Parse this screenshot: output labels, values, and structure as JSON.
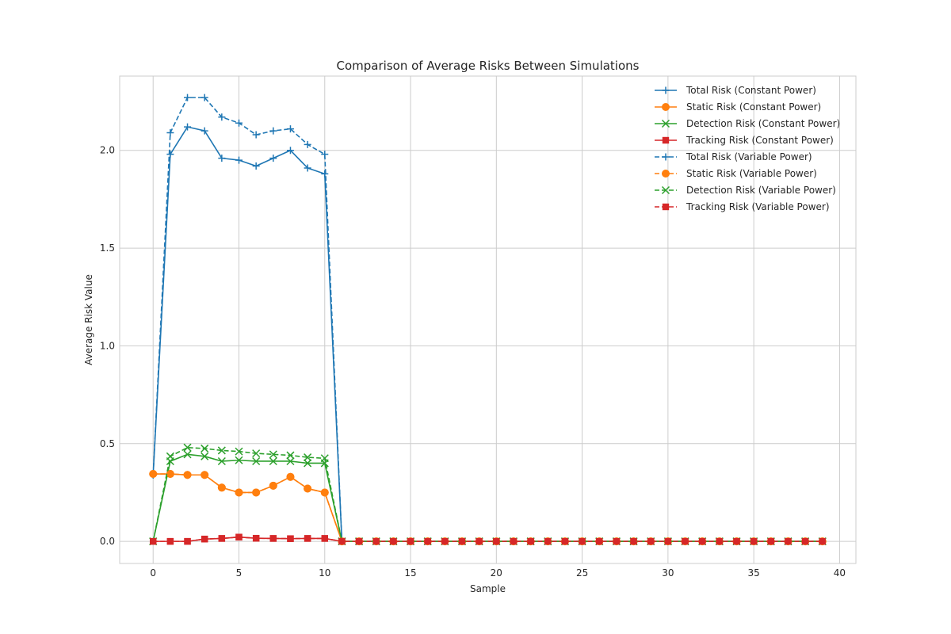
{
  "chart_data": {
    "type": "line",
    "title": "Comparison of Average Risks Between Simulations",
    "xlabel": "Sample",
    "ylabel": "Average Risk Value",
    "xlim": [
      -1.95,
      40.95
    ],
    "ylim": [
      -0.113,
      2.38
    ],
    "xticks": [
      0,
      5,
      10,
      15,
      20,
      25,
      30,
      35,
      40
    ],
    "yticks": [
      0.0,
      0.5,
      1.0,
      1.5,
      2.0
    ],
    "ytick_labels": [
      "0.0",
      "0.5",
      "1.0",
      "1.5",
      "2.0"
    ],
    "grid": true,
    "legend_position": "top-right",
    "x": [
      0,
      1,
      2,
      3,
      4,
      5,
      6,
      7,
      8,
      9,
      10,
      11,
      12,
      13,
      14,
      15,
      16,
      17,
      18,
      19,
      20,
      21,
      22,
      23,
      24,
      25,
      26,
      27,
      28,
      29,
      30,
      31,
      32,
      33,
      34,
      35,
      36,
      37,
      38,
      39
    ],
    "series": [
      {
        "name": "Total Risk (Constant Power)",
        "color": "#1f77b4",
        "dash": "solid",
        "marker": "plus",
        "values": [
          0.34,
          1.98,
          2.12,
          2.1,
          1.96,
          1.95,
          1.92,
          1.96,
          2.0,
          1.91,
          1.88,
          0,
          0,
          0,
          0,
          0,
          0,
          0,
          0,
          0,
          0,
          0,
          0,
          0,
          0,
          0,
          0,
          0,
          0,
          0,
          0,
          0,
          0,
          0,
          0,
          0,
          0,
          0,
          0,
          0
        ]
      },
      {
        "name": "Static Risk (Constant Power)",
        "color": "#ff7f0e",
        "dash": "solid",
        "marker": "circle",
        "values": [
          0.345,
          0.345,
          0.34,
          0.34,
          0.275,
          0.25,
          0.25,
          0.285,
          0.33,
          0.27,
          0.25,
          0,
          0,
          0,
          0,
          0,
          0,
          0,
          0,
          0,
          0,
          0,
          0,
          0,
          0,
          0,
          0,
          0,
          0,
          0,
          0,
          0,
          0,
          0,
          0,
          0,
          0,
          0,
          0,
          0
        ]
      },
      {
        "name": "Detection Risk (Constant Power)",
        "color": "#2ca02c",
        "dash": "solid",
        "marker": "x",
        "values": [
          0,
          0.41,
          0.445,
          0.435,
          0.41,
          0.415,
          0.41,
          0.41,
          0.41,
          0.4,
          0.4,
          0,
          0,
          0,
          0,
          0,
          0,
          0,
          0,
          0,
          0,
          0,
          0,
          0,
          0,
          0,
          0,
          0,
          0,
          0,
          0,
          0,
          0,
          0,
          0,
          0,
          0,
          0,
          0,
          0
        ]
      },
      {
        "name": "Tracking Risk (Constant Power)",
        "color": "#d62728",
        "dash": "solid",
        "marker": "square",
        "values": [
          0,
          0,
          0,
          0.012,
          0.015,
          0.022,
          0.016,
          0.015,
          0.014,
          0.015,
          0.015,
          0,
          0,
          0,
          0,
          0,
          0,
          0,
          0,
          0,
          0,
          0,
          0,
          0,
          0,
          0,
          0,
          0,
          0,
          0,
          0,
          0,
          0,
          0,
          0,
          0,
          0,
          0,
          0,
          0
        ]
      },
      {
        "name": "Total Risk (Variable Power)",
        "color": "#1f77b4",
        "dash": "dashed",
        "marker": "plus",
        "values": [
          0.34,
          2.09,
          2.27,
          2.27,
          2.17,
          2.14,
          2.08,
          2.1,
          2.11,
          2.03,
          1.98,
          0,
          0,
          0,
          0,
          0,
          0,
          0,
          0,
          0,
          0,
          0,
          0,
          0,
          0,
          0,
          0,
          0,
          0,
          0,
          0,
          0,
          0,
          0,
          0,
          0,
          0,
          0,
          0,
          0
        ]
      },
      {
        "name": "Static Risk (Variable Power)",
        "color": "#ff7f0e",
        "dash": "dashed",
        "marker": "circle",
        "values": [
          0.345,
          0.345,
          0.34,
          0.34,
          0.275,
          0.25,
          0.25,
          0.285,
          0.33,
          0.27,
          0.25,
          0,
          0,
          0,
          0,
          0,
          0,
          0,
          0,
          0,
          0,
          0,
          0,
          0,
          0,
          0,
          0,
          0,
          0,
          0,
          0,
          0,
          0,
          0,
          0,
          0,
          0,
          0,
          0,
          0
        ]
      },
      {
        "name": "Detection Risk (Variable Power)",
        "color": "#2ca02c",
        "dash": "dashed",
        "marker": "x",
        "values": [
          0,
          0.435,
          0.48,
          0.475,
          0.465,
          0.46,
          0.45,
          0.445,
          0.44,
          0.43,
          0.425,
          0,
          0,
          0,
          0,
          0,
          0,
          0,
          0,
          0,
          0,
          0,
          0,
          0,
          0,
          0,
          0,
          0,
          0,
          0,
          0,
          0,
          0,
          0,
          0,
          0,
          0,
          0,
          0,
          0
        ]
      },
      {
        "name": "Tracking Risk (Variable Power)",
        "color": "#d62728",
        "dash": "dashed",
        "marker": "square",
        "values": [
          0,
          0,
          0,
          0.012,
          0.015,
          0.022,
          0.016,
          0.015,
          0.014,
          0.015,
          0.015,
          0,
          0,
          0,
          0,
          0,
          0,
          0,
          0,
          0,
          0,
          0,
          0,
          0,
          0,
          0,
          0,
          0,
          0,
          0,
          0,
          0,
          0,
          0,
          0,
          0,
          0,
          0,
          0,
          0
        ]
      }
    ]
  }
}
